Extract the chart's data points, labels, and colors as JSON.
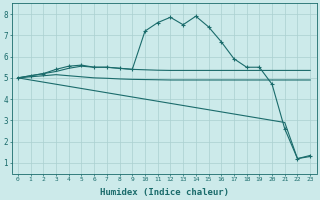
{
  "xlabel": "Humidex (Indice chaleur)",
  "background_color": "#cceaea",
  "grid_color": "#aad0d0",
  "line_color": "#1a6b6b",
  "ylim": [
    0.5,
    8.5
  ],
  "xlim": [
    -0.5,
    23.5
  ],
  "yticks": [
    1,
    2,
    3,
    4,
    5,
    6,
    7,
    8
  ],
  "x_ticks": [
    0,
    1,
    2,
    3,
    4,
    5,
    6,
    7,
    8,
    9,
    10,
    11,
    12,
    13,
    14,
    15,
    16,
    17,
    18,
    19,
    20,
    21,
    22,
    23
  ],
  "line_marked": {
    "x": [
      0,
      1,
      2,
      3,
      4,
      5,
      6,
      7,
      8,
      9,
      10,
      11,
      12,
      13,
      14,
      15,
      16,
      17,
      18,
      19,
      20,
      21,
      22,
      23
    ],
    "y": [
      5.0,
      5.1,
      5.2,
      5.4,
      5.55,
      5.6,
      5.5,
      5.5,
      5.45,
      5.4,
      7.2,
      7.6,
      7.85,
      7.5,
      7.9,
      7.4,
      6.7,
      5.9,
      5.5,
      5.5,
      4.7,
      2.6,
      1.2,
      1.3
    ]
  },
  "line_flat_upper": {
    "x": [
      0,
      1,
      2,
      3,
      4,
      5,
      6,
      7,
      8,
      9,
      10,
      11,
      12,
      13,
      14,
      15,
      16,
      17,
      18,
      19,
      20,
      21,
      22,
      23
    ],
    "y": [
      5.0,
      5.1,
      5.2,
      5.3,
      5.45,
      5.55,
      5.5,
      5.5,
      5.45,
      5.4,
      5.38,
      5.36,
      5.35,
      5.35,
      5.35,
      5.35,
      5.35,
      5.35,
      5.35,
      5.35,
      5.35,
      5.35,
      5.35,
      5.35
    ]
  },
  "line_flat_mid": {
    "x": [
      0,
      1,
      2,
      3,
      4,
      5,
      6,
      7,
      8,
      9,
      10,
      11,
      12,
      13,
      14,
      15,
      16,
      17,
      18,
      19,
      20,
      21,
      22,
      23
    ],
    "y": [
      5.0,
      5.05,
      5.1,
      5.15,
      5.1,
      5.05,
      5.0,
      4.98,
      4.95,
      4.93,
      4.92,
      4.91,
      4.9,
      4.9,
      4.9,
      4.9,
      4.9,
      4.9,
      4.9,
      4.9,
      4.9,
      4.9,
      4.9,
      4.9
    ]
  },
  "line_diagonal": {
    "x": [
      0,
      1,
      2,
      3,
      4,
      5,
      6,
      7,
      8,
      9,
      10,
      11,
      12,
      13,
      14,
      15,
      16,
      17,
      18,
      19,
      20,
      21,
      22,
      23
    ],
    "y": [
      5.0,
      4.9,
      4.8,
      4.7,
      4.6,
      4.5,
      4.4,
      4.3,
      4.2,
      4.1,
      4.0,
      3.9,
      3.8,
      3.7,
      3.6,
      3.5,
      3.4,
      3.3,
      3.2,
      3.1,
      3.0,
      2.9,
      1.2,
      1.35
    ]
  }
}
